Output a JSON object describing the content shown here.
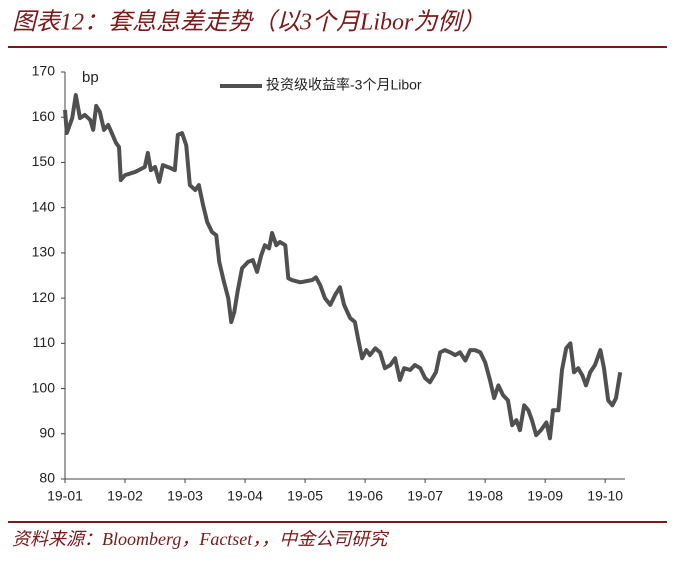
{
  "title": "图表12：套息息差走势（以3个月Libor为例）",
  "source": "资料来源：Bloomberg，Factset，，中金公司研究",
  "chart_data": {
    "type": "line",
    "y_label": "bp",
    "xlim": [
      0,
      9.33
    ],
    "xticks": [
      {
        "value": 0,
        "label": "19-01"
      },
      {
        "value": 1,
        "label": "19-02"
      },
      {
        "value": 2,
        "label": "19-03"
      },
      {
        "value": 3,
        "label": "19-04"
      },
      {
        "value": 4,
        "label": "19-05"
      },
      {
        "value": 5,
        "label": "19-06"
      },
      {
        "value": 6,
        "label": "19-07"
      },
      {
        "value": 7,
        "label": "19-08"
      },
      {
        "value": 8,
        "label": "19-09"
      },
      {
        "value": 9,
        "label": "19-10"
      }
    ],
    "ylim": [
      80,
      170
    ],
    "yticks": [
      80,
      90,
      100,
      110,
      120,
      130,
      140,
      150,
      160,
      170
    ],
    "legend": "top",
    "x": [
      0,
      0.03,
      0.12,
      0.18,
      0.25,
      0.33,
      0.42,
      0.47,
      0.52,
      0.58,
      0.65,
      0.72,
      0.78,
      0.85,
      0.9,
      0.93,
      1.0,
      1.17,
      1.33,
      1.38,
      1.43,
      1.5,
      1.57,
      1.63,
      1.75,
      1.83,
      1.88,
      1.95,
      2.02,
      2.08,
      2.17,
      2.23,
      2.3,
      2.37,
      2.45,
      2.52,
      2.57,
      2.65,
      2.72,
      2.77,
      2.82,
      2.88,
      2.95,
      3.05,
      3.13,
      3.2,
      3.27,
      3.33,
      3.4,
      3.45,
      3.52,
      3.58,
      3.67,
      3.72,
      3.78,
      3.92,
      4.12,
      4.18,
      4.25,
      4.33,
      4.42,
      4.5,
      4.58,
      4.65,
      4.75,
      4.83,
      4.88,
      4.95,
      5.02,
      5.08,
      5.17,
      5.25,
      5.33,
      5.42,
      5.5,
      5.58,
      5.65,
      5.75,
      5.83,
      5.92,
      6.0,
      6.08,
      6.18,
      6.25,
      6.33,
      6.42,
      6.5,
      6.58,
      6.67,
      6.75,
      6.83,
      6.92,
      7.0,
      7.08,
      7.15,
      7.22,
      7.3,
      7.38,
      7.45,
      7.52,
      7.58,
      7.65,
      7.72,
      7.78,
      7.85,
      7.93,
      8.02,
      8.08,
      8.13,
      8.22,
      8.28,
      8.35,
      8.42,
      8.48,
      8.55,
      8.62,
      8.68,
      8.75,
      8.83,
      8.92,
      8.98,
      9.05,
      9.12,
      9.18,
      9.25
    ],
    "series": [
      {
        "name": "投资级收益率-3个月Libor",
        "color": "#505050",
        "values": [
          161.6,
          156.5,
          159.8,
          164.9,
          159.8,
          160.5,
          159.4,
          157.2,
          162.5,
          161.2,
          157.2,
          158.3,
          156.5,
          154.3,
          153.4,
          146.1,
          147.2,
          147.9,
          149.0,
          152.1,
          148.3,
          149.0,
          145.7,
          149.4,
          148.8,
          148.3,
          156.1,
          156.5,
          153.8,
          145.0,
          143.9,
          145.0,
          140.6,
          136.8,
          134.6,
          133.9,
          128.0,
          123.5,
          120.0,
          114.7,
          116.9,
          121.8,
          126.6,
          128.0,
          128.4,
          125.8,
          129.5,
          131.7,
          131.0,
          134.4,
          131.7,
          132.4,
          131.7,
          124.4,
          124.0,
          123.5,
          124.0,
          124.6,
          122.9,
          120.0,
          118.5,
          120.7,
          122.4,
          118.5,
          115.6,
          114.7,
          111.2,
          106.7,
          108.5,
          107.4,
          108.9,
          108.0,
          104.5,
          105.2,
          106.7,
          101.9,
          104.5,
          104.1,
          105.2,
          104.5,
          102.3,
          101.4,
          103.6,
          108.0,
          108.5,
          108.0,
          107.4,
          108.0,
          106.2,
          108.5,
          108.5,
          108.0,
          105.8,
          101.9,
          97.9,
          100.7,
          98.5,
          97.4,
          91.9,
          93.0,
          90.8,
          96.3,
          95.2,
          93.0,
          89.7,
          90.8,
          92.5,
          89.0,
          95.2,
          95.2,
          104.1,
          108.9,
          110.0,
          103.6,
          104.5,
          102.9,
          100.7,
          103.6,
          105.2,
          108.5,
          104.5,
          97.4,
          96.3,
          97.9,
          103.6
        ]
      }
    ]
  }
}
